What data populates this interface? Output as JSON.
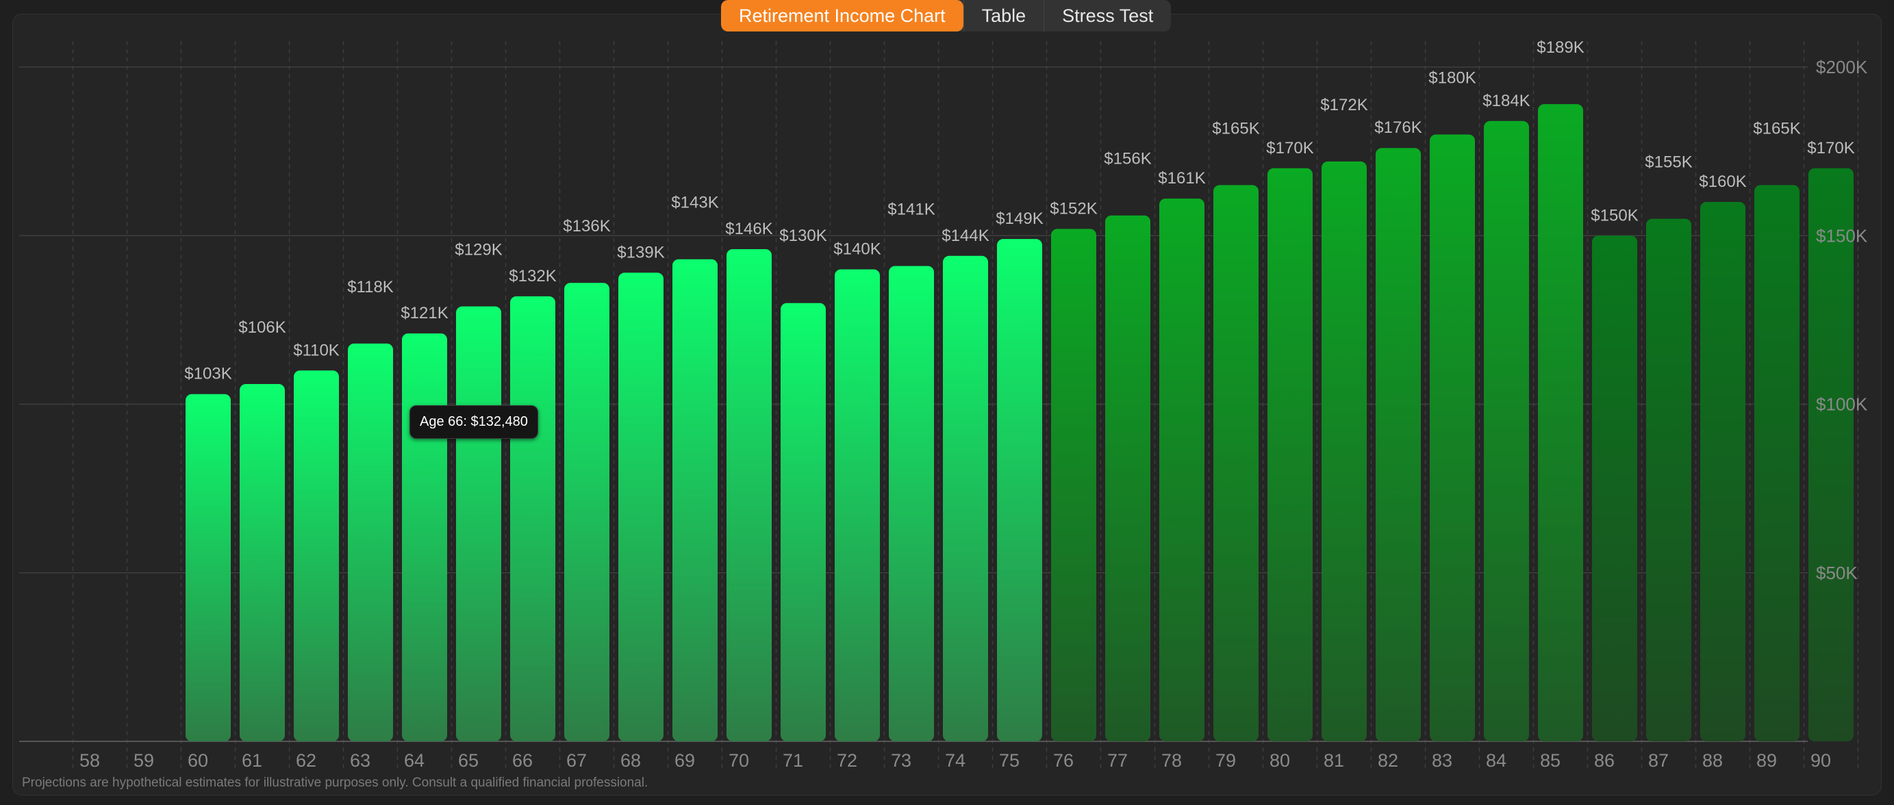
{
  "tabs": [
    {
      "label": "Retirement Income Chart",
      "active": true
    },
    {
      "label": "Table",
      "active": false
    },
    {
      "label": "Stress Test",
      "active": false
    }
  ],
  "tooltip": "Age 66: $132,480",
  "disclaimer": "Projections are hypothetical estimates for illustrative purposes only. Consult a qualified financial professional.",
  "colors": {
    "phase1_top": "#0cff6e",
    "phase1_bottom": "#2e7d46",
    "phase2_top": "#0aaa23",
    "phase2_bottom": "#1f5a26",
    "phase3_top": "#087a1c",
    "phase3_bottom": "#1e4a22",
    "accent": "#f5821f"
  },
  "chart_data": {
    "type": "bar",
    "categories": [
      "58",
      "59",
      "60",
      "61",
      "62",
      "63",
      "64",
      "65",
      "66",
      "67",
      "68",
      "69",
      "70",
      "71",
      "72",
      "73",
      "74",
      "75",
      "76",
      "77",
      "78",
      "79",
      "80",
      "81",
      "82",
      "83",
      "84",
      "85",
      "86",
      "87",
      "88",
      "89",
      "90"
    ],
    "values": [
      null,
      null,
      103,
      106,
      110,
      118,
      121,
      129,
      132,
      136,
      139,
      143,
      146,
      130,
      140,
      141,
      144,
      149,
      152,
      156,
      161,
      165,
      170,
      172,
      176,
      180,
      184,
      189,
      150,
      155,
      160,
      165,
      170
    ],
    "value_labels": [
      "",
      "",
      "$103K",
      "$106K",
      "$110K",
      "$118K",
      "$121K",
      "$129K",
      "$132K",
      "$136K",
      "$139K",
      "$143K",
      "$146K",
      "$130K",
      "$140K",
      "$141K",
      "$144K",
      "$149K",
      "$152K",
      "$156K",
      "$161K",
      "$165K",
      "$170K",
      "$172K",
      "$176K",
      "$180K",
      "$184K",
      "$189K",
      "$150K",
      "$155K",
      "$160K",
      "$165K",
      "$170K"
    ],
    "phase": [
      0,
      0,
      1,
      1,
      1,
      1,
      1,
      1,
      1,
      1,
      1,
      1,
      1,
      1,
      1,
      1,
      1,
      1,
      2,
      2,
      2,
      2,
      2,
      2,
      2,
      2,
      2,
      2,
      3,
      3,
      3,
      3,
      3
    ],
    "units": "thousands USD",
    "ylim": [
      0,
      200
    ],
    "yticks": [
      50,
      100,
      150,
      200
    ],
    "ytick_labels": [
      "$50K",
      "$100K",
      "$150K",
      "$200K"
    ],
    "axis_side": "right",
    "grid": true
  }
}
